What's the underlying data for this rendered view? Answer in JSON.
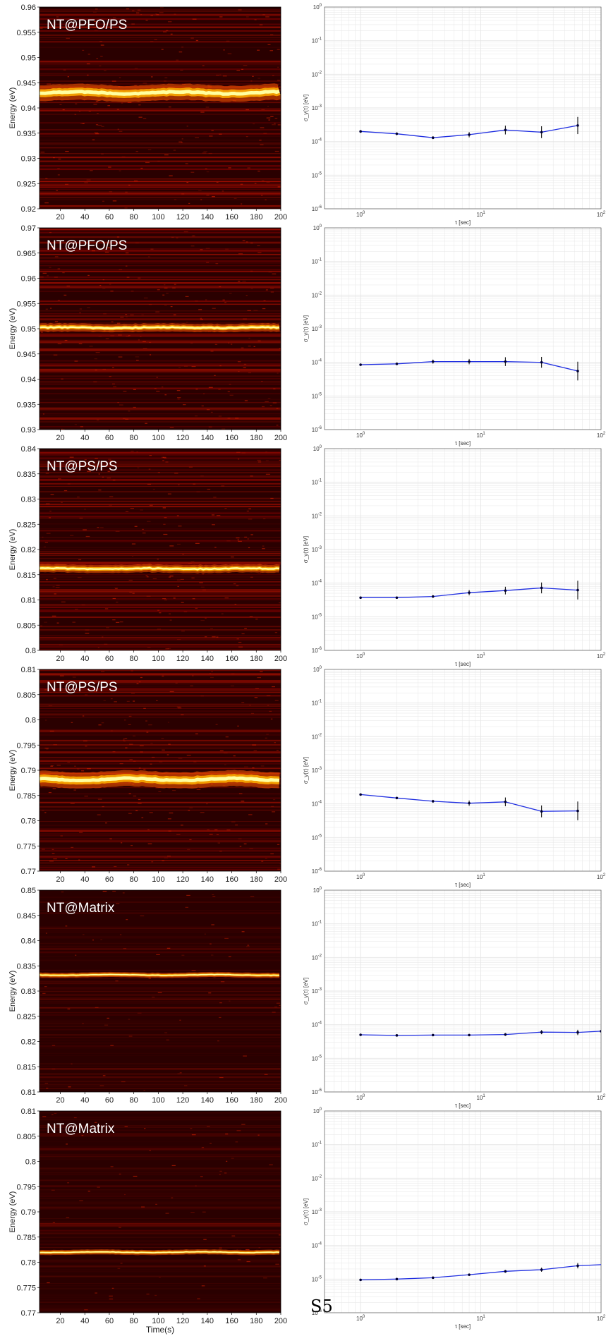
{
  "footer_label": "S5",
  "style": {
    "heat_bg": "#2a0000",
    "line_core": "#ffffa0",
    "line_glow": "#ff5a00",
    "allan_line": "#1f2ee0",
    "grid": "#e6e6e6"
  },
  "shared": {
    "heat_ylabel": "Energy (eV)",
    "heat_xlabel": "Time(s)",
    "heat_xticks": [
      20,
      40,
      60,
      80,
      100,
      120,
      140,
      160,
      180,
      200
    ],
    "heat_xrange": [
      3,
      200
    ],
    "allan_ylabel": "σ_y(τ) [eV]",
    "allan_xlabel": "τ [sec]",
    "allan_ylim_exp": [
      -6,
      0
    ],
    "allan_xlim_exp": [
      -0.3,
      2
    ]
  },
  "chart_data": [
    {
      "type": "heatmap",
      "label": "NT@PFO/PS",
      "ylim": [
        0.92,
        0.96
      ],
      "yticks": [
        "0.92",
        "0.925",
        "0.93",
        "0.935",
        "0.94",
        "0.945",
        "0.95",
        "0.955",
        "0.96"
      ],
      "ridge_energy": 0.943,
      "ridge_width": "broad"
    },
    {
      "type": "line",
      "tau": [
        1,
        2,
        4,
        8,
        16,
        32,
        64
      ],
      "sigma": [
        0.0002,
        0.00017,
        0.00013,
        0.00016,
        0.00022,
        0.00019,
        0.0003
      ],
      "err_factor": [
        1.1,
        1.1,
        1.1,
        1.2,
        1.35,
        1.5,
        1.8
      ]
    },
    {
      "type": "heatmap",
      "label": "NT@PFO/PS",
      "ylim": [
        0.93,
        0.97
      ],
      "yticks": [
        "0.93",
        "0.935",
        "0.94",
        "0.945",
        "0.95",
        "0.955",
        "0.96",
        "0.965",
        "0.97"
      ],
      "ridge_energy": 0.9502,
      "ridge_width": "medium"
    },
    {
      "type": "line",
      "tau": [
        1,
        2,
        4,
        8,
        16,
        32,
        64
      ],
      "sigma": [
        8.5e-05,
        9e-05,
        0.000105,
        0.000105,
        0.000105,
        0.0001,
        5.5e-05
      ],
      "err_factor": [
        1.05,
        1.05,
        1.15,
        1.2,
        1.35,
        1.45,
        1.9
      ]
    },
    {
      "type": "heatmap",
      "label": "NT@PS/PS",
      "ylim": [
        0.8,
        0.84
      ],
      "yticks": [
        "0.8",
        "0.805",
        "0.81",
        "0.815",
        "0.82",
        "0.825",
        "0.83",
        "0.835",
        "0.84"
      ],
      "ridge_energy": 0.8162,
      "ridge_width": "medium"
    },
    {
      "type": "line",
      "tau": [
        1,
        2,
        4,
        8,
        16,
        32,
        64
      ],
      "sigma": [
        3.7e-05,
        3.7e-05,
        4e-05,
        5.2e-05,
        6e-05,
        7.2e-05,
        6.2e-05
      ],
      "err_factor": [
        1.05,
        1.05,
        1.1,
        1.2,
        1.3,
        1.45,
        1.9
      ]
    },
    {
      "type": "heatmap",
      "label": "NT@PS/PS",
      "ylim": [
        0.77,
        0.81
      ],
      "yticks": [
        "0.77",
        "0.775",
        "0.78",
        "0.785",
        "0.79",
        "0.795",
        "0.8",
        "0.805",
        "0.81"
      ],
      "ridge_energy": 0.7882,
      "ridge_width": "broad"
    },
    {
      "type": "line",
      "tau": [
        1,
        2,
        4,
        8,
        16,
        32,
        64
      ],
      "sigma": [
        0.00019,
        0.00015,
        0.00012,
        0.000105,
        0.000115,
        6e-05,
        6.2e-05
      ],
      "err_factor": [
        1.05,
        1.05,
        1.1,
        1.2,
        1.35,
        1.5,
        1.9
      ]
    },
    {
      "type": "heatmap",
      "label": "NT@Matrix",
      "ylim": [
        0.81,
        0.85
      ],
      "yticks": [
        "0.81",
        "0.815",
        "0.82",
        "0.825",
        "0.83",
        "0.835",
        "0.84",
        "0.845",
        "0.85"
      ],
      "ridge_energy": 0.8332,
      "ridge_width": "thin"
    },
    {
      "type": "line",
      "tau": [
        1,
        2,
        4,
        8,
        16,
        32,
        64,
        100
      ],
      "sigma": [
        5e-05,
        4.8e-05,
        4.9e-05,
        4.9e-05,
        5.1e-05,
        6e-05,
        5.9e-05,
        6.4e-05
      ],
      "err_factor": [
        1.03,
        1.03,
        1.05,
        1.07,
        1.1,
        1.15,
        1.2,
        1.0
      ]
    },
    {
      "type": "heatmap",
      "label": "NT@Matrix",
      "ylim": [
        0.77,
        0.81
      ],
      "yticks": [
        "0.77",
        "0.775",
        "0.78",
        "0.785",
        "0.79",
        "0.795",
        "0.8",
        "0.805",
        "0.81"
      ],
      "ridge_energy": 0.782,
      "ridge_width": "thin"
    },
    {
      "type": "line",
      "tau": [
        1,
        2,
        4,
        8,
        16,
        32,
        64,
        128,
        200
      ],
      "sigma": [
        9.5e-06,
        1e-05,
        1.1e-05,
        1.35e-05,
        1.7e-05,
        1.9e-05,
        2.5e-05,
        2.8e-05,
        2.4e-05
      ],
      "err_factor": [
        1.03,
        1.03,
        1.05,
        1.07,
        1.1,
        1.15,
        1.2,
        1.3,
        1.0
      ]
    }
  ]
}
